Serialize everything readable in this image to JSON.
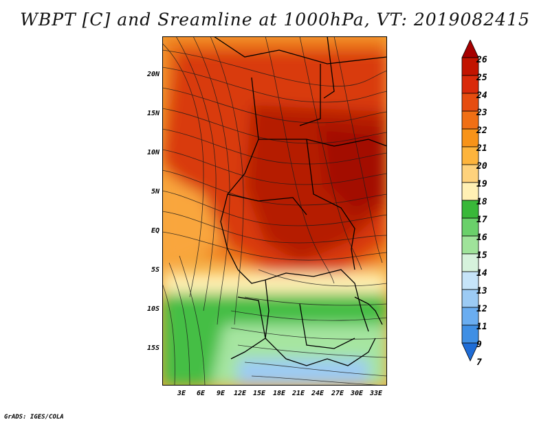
{
  "title": "WBPT [C] and Sreamline at 1000hPa, VT: 2019082415",
  "credit": "GrADS: IGES/COLA",
  "map": {
    "lat_labels": [
      "20N",
      "15N",
      "10N",
      "5N",
      "EQ",
      "5S",
      "10S",
      "15S"
    ],
    "lon_labels": [
      "3E",
      "6E",
      "9E",
      "12E",
      "15E",
      "18E",
      "21E",
      "24E",
      "27E",
      "30E",
      "33E"
    ],
    "lat_range": [
      -19.5,
      24.5
    ],
    "lon_range": [
      0,
      34.5
    ]
  },
  "colorbar": {
    "labels": [
      "26",
      "25",
      "24",
      "23",
      "22",
      "21",
      "20",
      "19",
      "18",
      "17",
      "16",
      "15",
      "14",
      "13",
      "12",
      "11",
      "9",
      "7"
    ],
    "colors": [
      "#a60000",
      "#c21400",
      "#d92a0a",
      "#e64d10",
      "#f06f14",
      "#f79318",
      "#fdb43c",
      "#fed27c",
      "#fff0b4",
      "#39b839",
      "#6ad06a",
      "#9fe39a",
      "#d6f2dc",
      "#c6e4f9",
      "#9ccbf4",
      "#6aadf0",
      "#3f8fe4",
      "#1e6cd6"
    ]
  }
}
